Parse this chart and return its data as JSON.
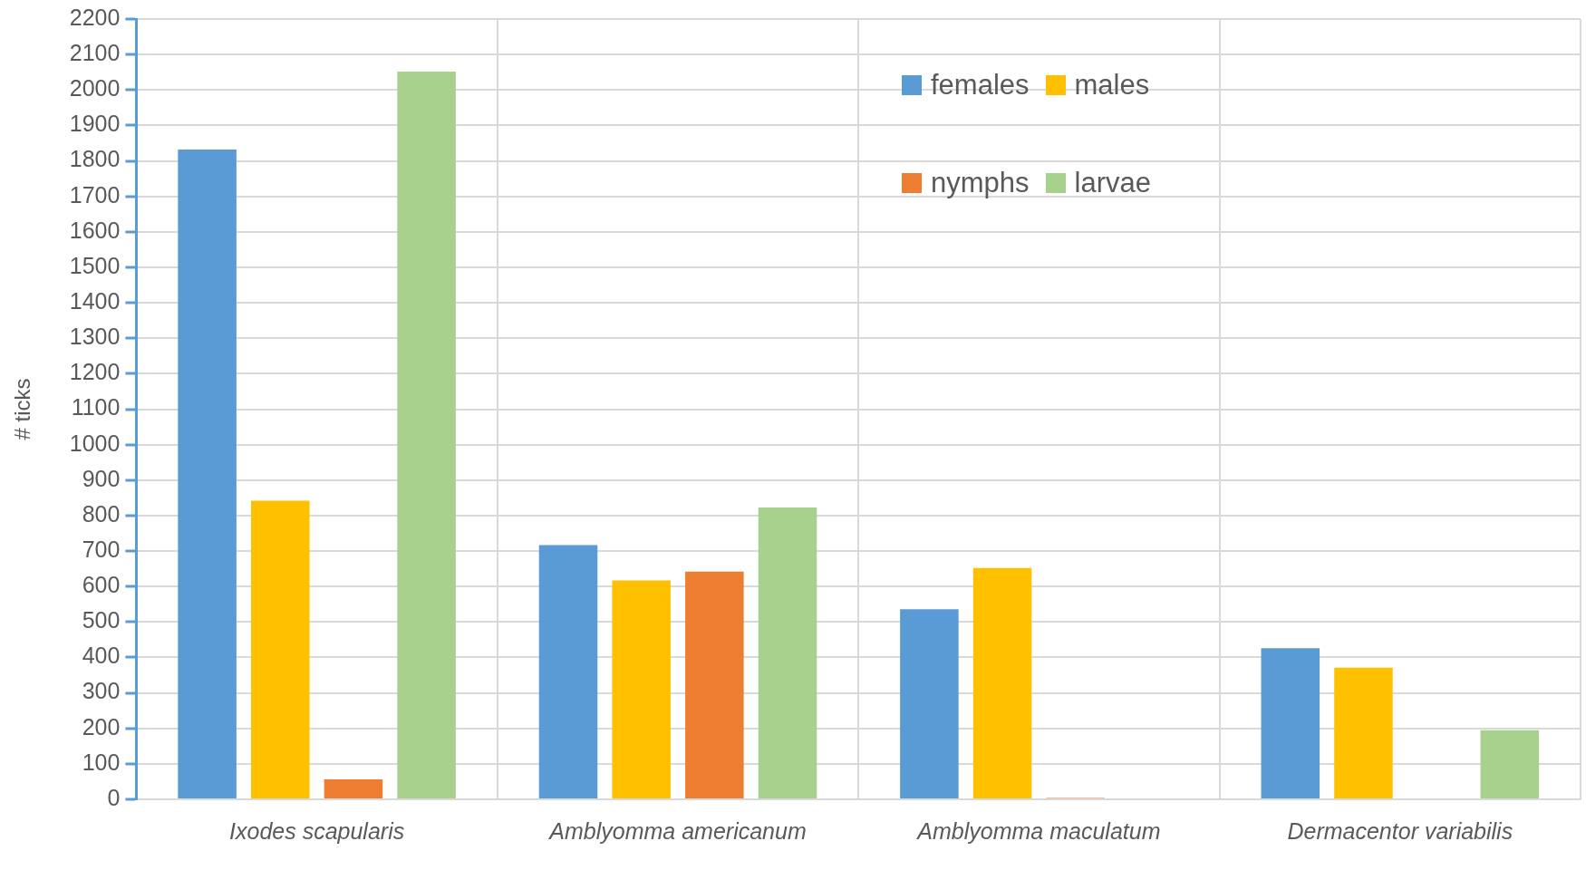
{
  "chart_data": {
    "type": "bar",
    "ylabel": "# ticks",
    "categories": [
      "Ixodes scapularis",
      "Amblyomma americanum",
      "Amblyomma maculatum",
      "Dermacentor variabilis"
    ],
    "series": [
      {
        "name": "females",
        "color": "#5b9bd5",
        "values": [
          1832,
          717,
          536,
          426
        ]
      },
      {
        "name": "males",
        "color": "#ffc000",
        "values": [
          842,
          617,
          652,
          371
        ]
      },
      {
        "name": "nymphs",
        "color": "#ed7d31",
        "values": [
          56,
          642,
          4,
          null
        ]
      },
      {
        "name": "larvae",
        "color": "#a9d18e",
        "values": [
          2052,
          823,
          null,
          195
        ]
      }
    ],
    "ylim": [
      0,
      2200
    ],
    "yticks": [
      0,
      100,
      200,
      300,
      400,
      500,
      600,
      700,
      800,
      900,
      1000,
      1100,
      1200,
      1300,
      1400,
      1500,
      1600,
      1700,
      1800,
      1900,
      2000,
      2100,
      2200
    ],
    "grid": true,
    "legend": "top right"
  }
}
